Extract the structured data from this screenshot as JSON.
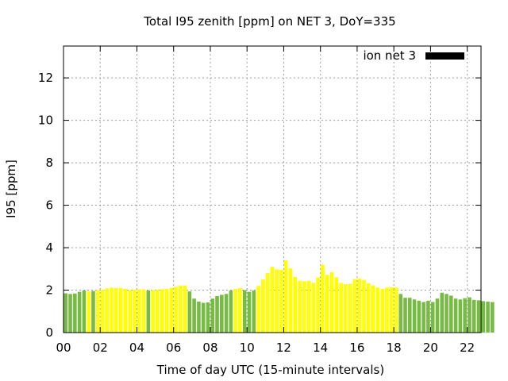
{
  "chart_data": {
    "type": "bar",
    "title": "Total I95 zenith [ppm] on NET 3, DoY=335",
    "xlabel": "Time of day UTC (15-minute intervals)",
    "ylabel": "I95 [ppm]",
    "ylim": [
      0,
      13.5
    ],
    "xlim": [
      0,
      22.75
    ],
    "yticks": [
      "0",
      "2",
      "4",
      "6",
      "8",
      "10",
      "12"
    ],
    "xticks": [
      "00",
      "02",
      "04",
      "06",
      "08",
      "10",
      "12",
      "14",
      "16",
      "18",
      "20",
      "22"
    ],
    "grid": true,
    "legend": {
      "label": "ion net 3",
      "placement": "top-right",
      "color": "#000000"
    },
    "colors": {
      "green": "#77bb44",
      "yellow": "#ffff00"
    },
    "interval_hours": 0.25,
    "values": [
      1.85,
      1.82,
      1.84,
      1.92,
      1.98,
      1.94,
      1.96,
      2.0,
      2.02,
      2.08,
      2.12,
      2.1,
      2.1,
      2.06,
      2.0,
      2.02,
      2.04,
      2.04,
      1.98,
      2.0,
      2.02,
      2.04,
      2.06,
      2.1,
      2.16,
      2.22,
      2.22,
      1.94,
      1.6,
      1.46,
      1.4,
      1.42,
      1.6,
      1.72,
      1.78,
      1.82,
      1.98,
      2.06,
      2.1,
      2.0,
      1.92,
      1.98,
      2.2,
      2.5,
      2.8,
      3.1,
      2.98,
      2.96,
      3.4,
      3.02,
      2.62,
      2.44,
      2.42,
      2.44,
      2.34,
      2.6,
      3.2,
      2.72,
      2.84,
      2.6,
      2.34,
      2.28,
      2.3,
      2.52,
      2.54,
      2.48,
      2.32,
      2.22,
      2.12,
      2.06,
      2.12,
      2.14,
      2.12,
      1.82,
      1.64,
      1.64,
      1.56,
      1.5,
      1.44,
      1.5,
      1.44,
      1.6,
      1.88,
      1.82,
      1.74,
      1.6,
      1.56,
      1.62,
      1.66,
      1.54,
      1.52,
      1.48,
      1.46,
      1.44
    ],
    "bar_colors": [
      "green",
      "green",
      "green",
      "green",
      "green",
      "yellow",
      "green",
      "yellow",
      "yellow",
      "yellow",
      "yellow",
      "yellow",
      "yellow",
      "yellow",
      "yellow",
      "yellow",
      "yellow",
      "yellow",
      "green",
      "yellow",
      "yellow",
      "yellow",
      "yellow",
      "yellow",
      "yellow",
      "yellow",
      "yellow",
      "green",
      "green",
      "green",
      "green",
      "green",
      "green",
      "green",
      "green",
      "green",
      "green",
      "yellow",
      "yellow",
      "green",
      "green",
      "green",
      "yellow",
      "yellow",
      "yellow",
      "yellow",
      "yellow",
      "yellow",
      "yellow",
      "yellow",
      "yellow",
      "yellow",
      "yellow",
      "yellow",
      "yellow",
      "yellow",
      "yellow",
      "yellow",
      "yellow",
      "yellow",
      "yellow",
      "yellow",
      "yellow",
      "yellow",
      "yellow",
      "yellow",
      "yellow",
      "yellow",
      "yellow",
      "yellow",
      "yellow",
      "yellow",
      "yellow",
      "green",
      "green",
      "green",
      "green",
      "green",
      "green",
      "green",
      "green",
      "green",
      "green",
      "green",
      "green",
      "green",
      "green",
      "green",
      "green",
      "green",
      "green",
      "green",
      "green",
      "green"
    ]
  }
}
